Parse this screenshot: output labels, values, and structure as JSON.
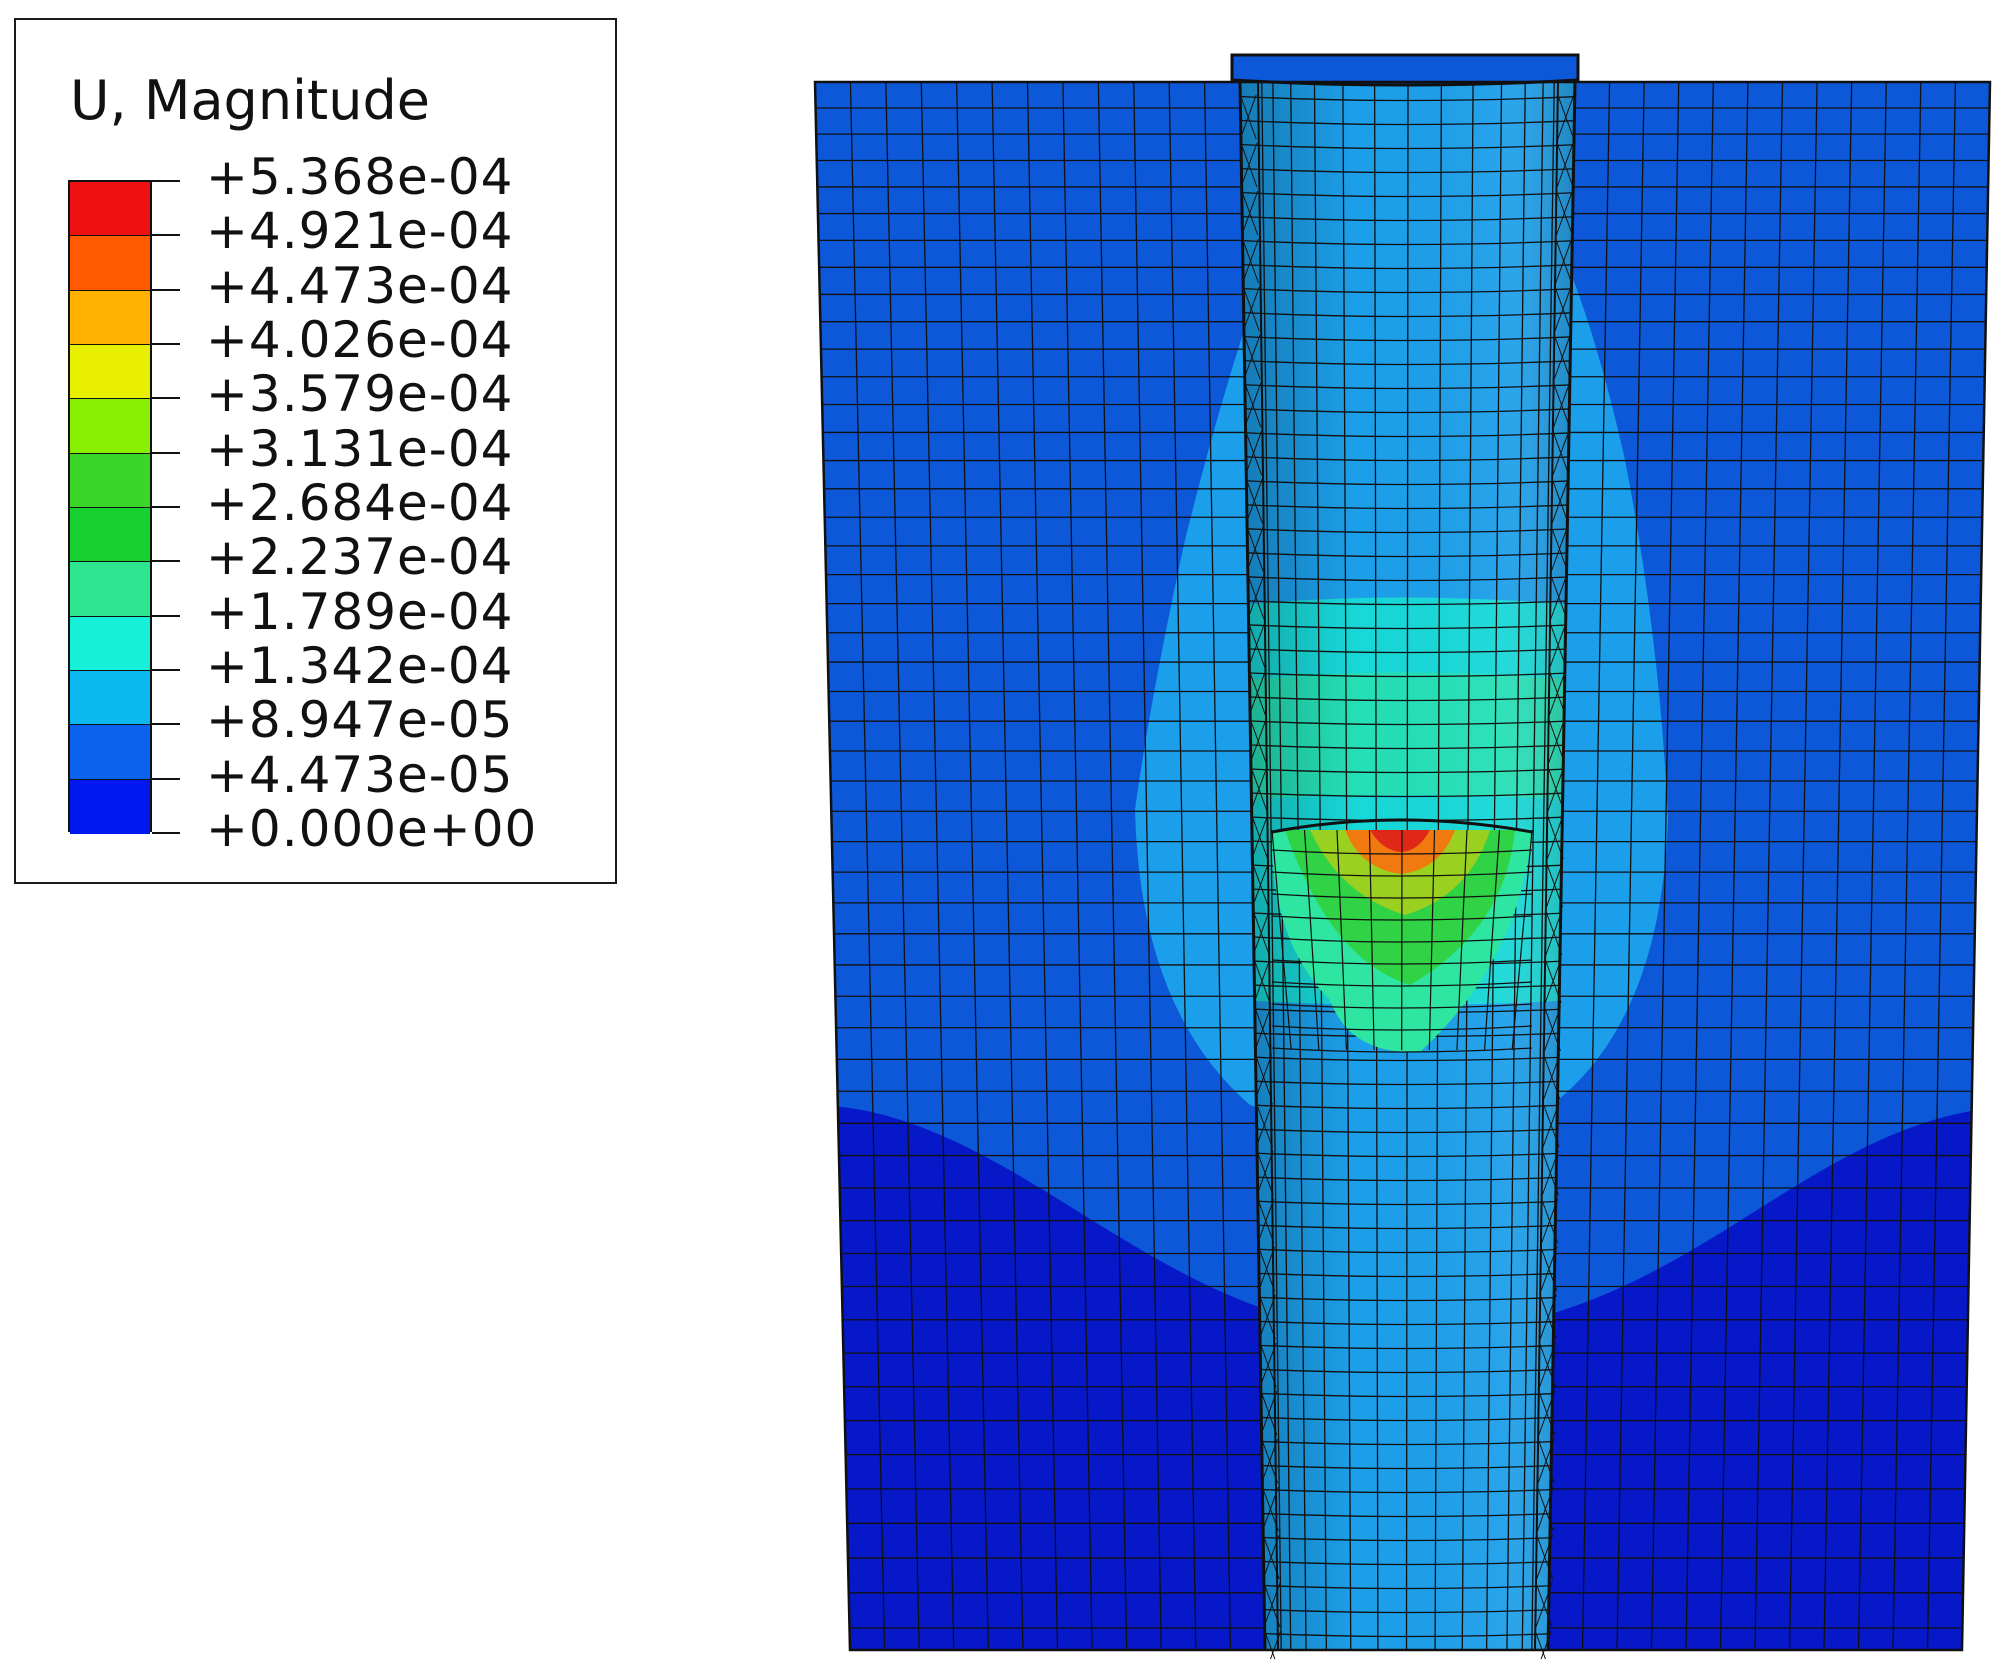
{
  "legend": {
    "title": "U, Magnitude",
    "ticks": [
      "+5.368e-04",
      "+4.921e-04",
      "+4.473e-04",
      "+4.026e-04",
      "+3.579e-04",
      "+3.131e-04",
      "+2.684e-04",
      "+2.237e-04",
      "+1.789e-04",
      "+1.342e-04",
      "+8.947e-05",
      "+4.473e-05",
      "+0.000e+00"
    ],
    "band_colors_top_to_bottom": [
      "#ee1111",
      "#ff5a00",
      "#ffb300",
      "#e8f000",
      "#88f000",
      "#3ad62a",
      "#18d030",
      "#2ee690",
      "#17f0d8",
      "#0cb8f0",
      "#0a62ee",
      "#0018f0"
    ]
  },
  "model": {
    "colors": {
      "deep": "#0618c8",
      "base": "#0c58d8",
      "light": "#1c9fea",
      "cyan": "#18d8d8",
      "mint": "#2ee6a2",
      "green": "#30d246",
      "lime": "#9ad020",
      "orange": "#f07a10",
      "red": "#e02818",
      "mesh": "#101010"
    }
  }
}
